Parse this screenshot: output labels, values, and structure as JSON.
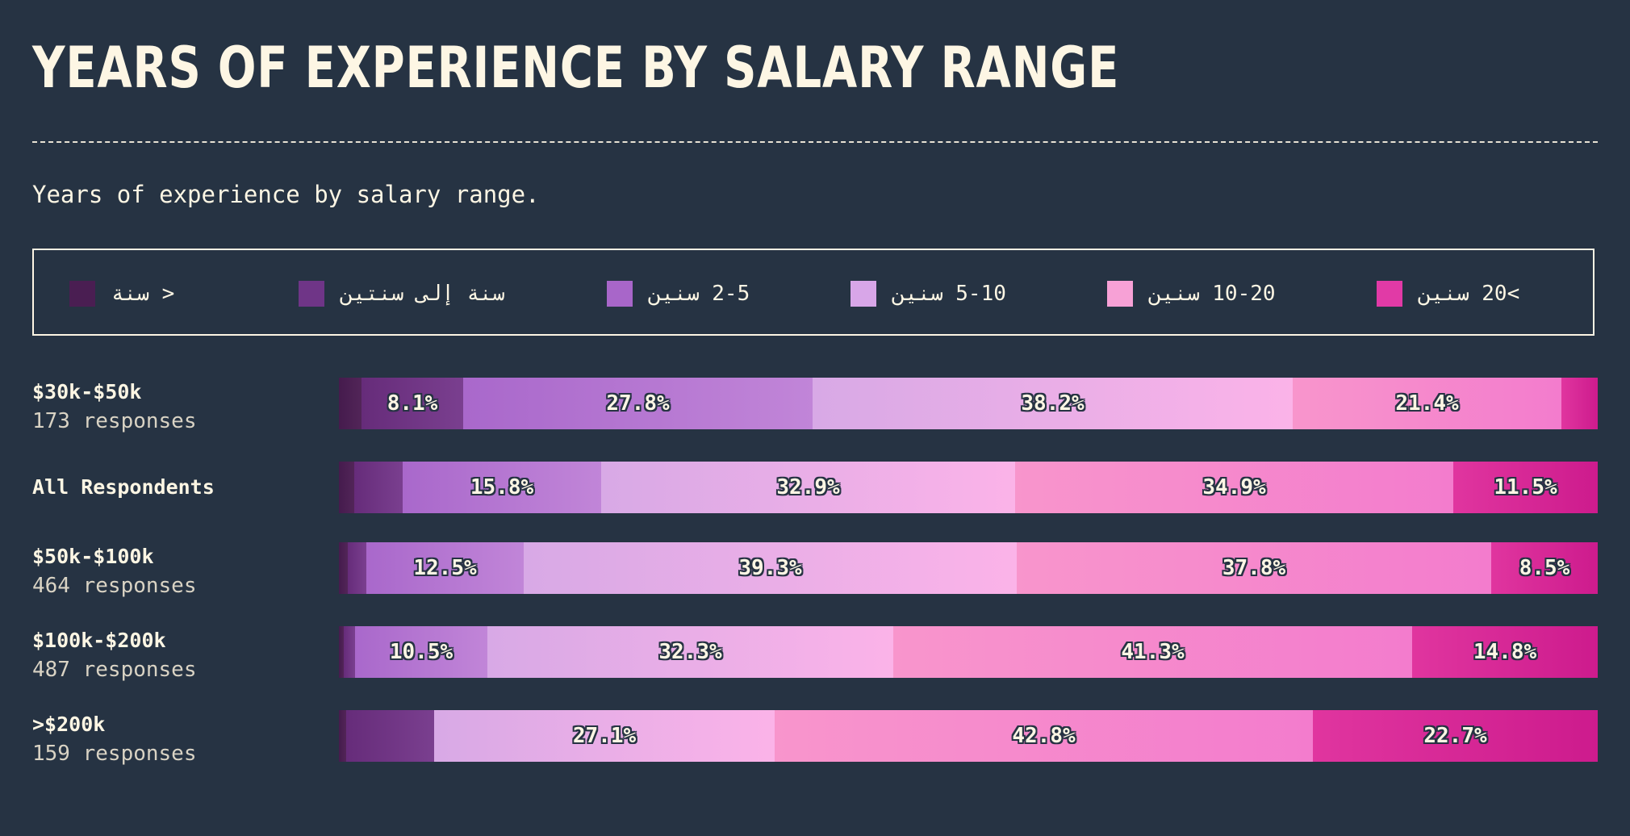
{
  "title": "YEARS OF EXPERIENCE BY SALARY RANGE",
  "subtitle": "Years of experience by salary range.",
  "chart_data": {
    "type": "bar",
    "stacked": true,
    "orientation": "horizontal",
    "normalized": "percent",
    "legend": [
      {
        "label": "< سنة",
        "color": "#4a1e52"
      },
      {
        "label": "سنة إلى سنتين",
        "color": "#6f3587"
      },
      {
        "label": "2-5 سنين",
        "color": "#a866c9"
      },
      {
        "label": "5-10 سنين",
        "color": "#d8a6e8"
      },
      {
        "label": "10-20 سنين",
        "color": "#f7a1d6"
      },
      {
        "label": ">20 سنين",
        "color": "#e13aa6"
      }
    ],
    "segment_gradients": [
      [
        "#451b4d",
        "#522558"
      ],
      [
        "#662c7a",
        "#7a3f8f"
      ],
      [
        "#a968cb",
        "#c185d8"
      ],
      [
        "#d8a9e6",
        "#fbb3e8"
      ],
      [
        "#f895cc",
        "#f37ccd"
      ],
      [
        "#e0359f",
        "#cd1b8d"
      ]
    ],
    "rows": [
      {
        "name": "$30k-$50k",
        "responses": "173 responses",
        "values": [
          1.8,
          8.1,
          27.8,
          38.2,
          21.4,
          2.9
        ],
        "labels": [
          "",
          "8.1%",
          "27.8%",
          "38.2%",
          "21.4%",
          ""
        ]
      },
      {
        "name": "All Respondents",
        "responses": "",
        "values": [
          1.2,
          3.9,
          15.8,
          32.9,
          34.9,
          11.5
        ],
        "labels": [
          "",
          "",
          "15.8%",
          "32.9%",
          "34.9%",
          "11.5%"
        ]
      },
      {
        "name": "$50k-$100k",
        "responses": "464 responses",
        "values": [
          0.7,
          1.5,
          12.5,
          39.3,
          37.8,
          8.5
        ],
        "labels": [
          "",
          "",
          "12.5%",
          "39.3%",
          "37.8%",
          "8.5%"
        ]
      },
      {
        "name": "$100k-$200k",
        "responses": "487 responses",
        "values": [
          0.4,
          0.9,
          10.5,
          32.3,
          41.3,
          14.8
        ],
        "labels": [
          "",
          "",
          "10.5%",
          "32.3%",
          "41.3%",
          "14.8%"
        ]
      },
      {
        "name": ">$200k",
        "responses": "159 responses",
        "values": [
          0.6,
          7.0,
          0,
          27.1,
          42.8,
          22.7
        ],
        "labels": [
          "",
          "",
          "",
          "27.1%",
          "42.8%",
          "22.7%"
        ]
      }
    ]
  }
}
